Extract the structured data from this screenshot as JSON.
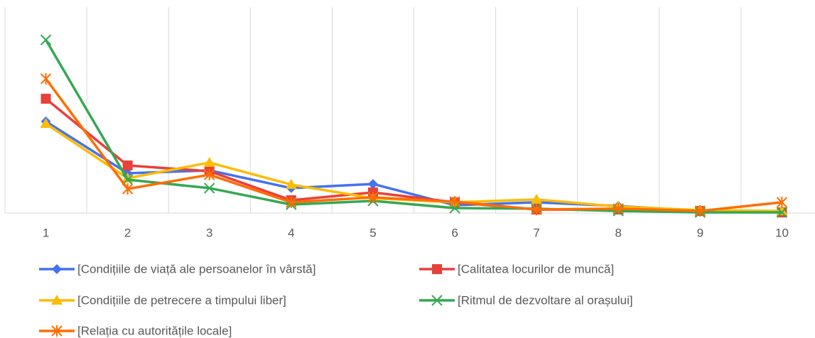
{
  "chart_data": {
    "type": "line",
    "categories": [
      "1",
      "2",
      "3",
      "4",
      "5",
      "6",
      "7",
      "8",
      "9",
      "10"
    ],
    "ylim": [
      0,
      100
    ],
    "series": [
      {
        "name": "[Condițiile de viață ale persoanelor în vârstă]",
        "color": "#4472f0",
        "marker": "diamond",
        "values": [
          44.5,
          19.3,
          20.7,
          12.1,
          14.1,
          3.8,
          5.2,
          3.4,
          1.0,
          0.7
        ]
      },
      {
        "name": "[Calitatea locurilor de muncă]",
        "color": "#e8403a",
        "marker": "square",
        "values": [
          55.5,
          23.1,
          20.3,
          6.2,
          10.0,
          5.2,
          1.7,
          1.7,
          1.0,
          0.3
        ]
      },
      {
        "name": "[Condițiile de petrecere a timpului liber]",
        "color": "#fbbc04",
        "marker": "triangle",
        "values": [
          43.4,
          16.9,
          24.5,
          13.8,
          7.2,
          5.2,
          6.6,
          3.1,
          1.4,
          1.0
        ]
      },
      {
        "name": "[Ritmul de dezvoltare al orașului]",
        "color": "#34a853",
        "marker": "x",
        "values": [
          84.1,
          16.2,
          12.1,
          4.1,
          5.9,
          2.4,
          2.1,
          1.0,
          0.3,
          0.3
        ]
      },
      {
        "name": "[Relația cu autoritățile locale]",
        "color": "#ff6d01",
        "marker": "star",
        "values": [
          65.2,
          11.7,
          18.6,
          5.2,
          7.6,
          5.5,
          1.7,
          2.1,
          1.0,
          5.2
        ]
      }
    ]
  }
}
